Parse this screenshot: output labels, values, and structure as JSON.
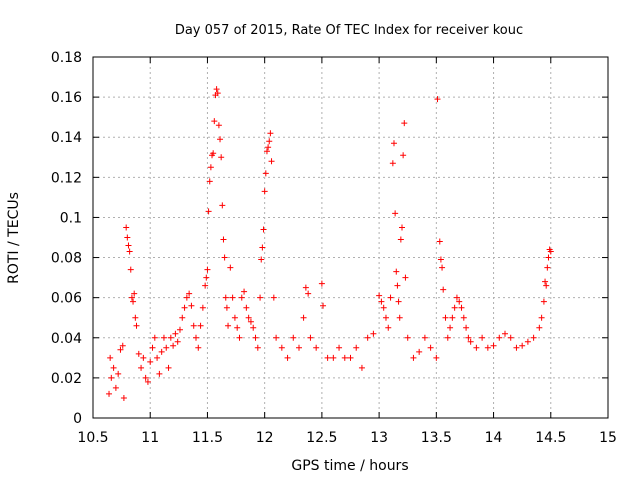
{
  "chart_data": {
    "type": "scatter",
    "title": "Day 057 of 2015, Rate Of TEC Index for receiver kouc",
    "xlabel": "GPS time / hours",
    "ylabel": "ROTI / TECUs",
    "xlim": [
      10.5,
      15
    ],
    "ylim": [
      0,
      0.18
    ],
    "xticks": [
      10.5,
      11,
      11.5,
      12,
      12.5,
      13,
      13.5,
      14,
      14.5,
      15
    ],
    "xtick_labels": [
      "10.5",
      "11",
      "11.5",
      "12",
      "12.5",
      "13",
      "13.5",
      "14",
      "14.5",
      "15"
    ],
    "yticks": [
      0,
      0.02,
      0.04,
      0.06,
      0.08,
      0.1,
      0.12,
      0.14,
      0.16,
      0.18
    ],
    "ytick_labels": [
      "0",
      "0.02",
      "0.04",
      "0.06",
      "0.08",
      "0.1",
      "0.12",
      "0.14",
      "0.16",
      "0.18"
    ],
    "grid": true,
    "marker": "+",
    "color": "#ff0000",
    "series": [
      {
        "name": "ROTI",
        "points": [
          [
            10.64,
            0.012
          ],
          [
            10.65,
            0.03
          ],
          [
            10.66,
            0.02
          ],
          [
            10.68,
            0.025
          ],
          [
            10.7,
            0.015
          ],
          [
            10.72,
            0.022
          ],
          [
            10.74,
            0.034
          ],
          [
            10.76,
            0.036
          ],
          [
            10.77,
            0.01
          ],
          [
            10.79,
            0.095
          ],
          [
            10.8,
            0.09
          ],
          [
            10.81,
            0.086
          ],
          [
            10.82,
            0.083
          ],
          [
            10.83,
            0.074
          ],
          [
            10.84,
            0.06
          ],
          [
            10.85,
            0.058
          ],
          [
            10.86,
            0.062
          ],
          [
            10.87,
            0.05
          ],
          [
            10.88,
            0.046
          ],
          [
            10.9,
            0.032
          ],
          [
            10.92,
            0.025
          ],
          [
            10.94,
            0.03
          ],
          [
            10.96,
            0.02
          ],
          [
            10.98,
            0.018
          ],
          [
            11.0,
            0.028
          ],
          [
            11.02,
            0.035
          ],
          [
            11.04,
            0.04
          ],
          [
            11.06,
            0.03
          ],
          [
            11.08,
            0.022
          ],
          [
            11.1,
            0.033
          ],
          [
            11.12,
            0.04
          ],
          [
            11.14,
            0.035
          ],
          [
            11.16,
            0.025
          ],
          [
            11.18,
            0.04
          ],
          [
            11.2,
            0.036
          ],
          [
            11.22,
            0.042
          ],
          [
            11.24,
            0.038
          ],
          [
            11.26,
            0.044
          ],
          [
            11.28,
            0.05
          ],
          [
            11.3,
            0.055
          ],
          [
            11.32,
            0.06
          ],
          [
            11.34,
            0.062
          ],
          [
            11.36,
            0.056
          ],
          [
            11.38,
            0.046
          ],
          [
            11.4,
            0.04
          ],
          [
            11.42,
            0.035
          ],
          [
            11.44,
            0.046
          ],
          [
            11.46,
            0.055
          ],
          [
            11.48,
            0.066
          ],
          [
            11.49,
            0.07
          ],
          [
            11.5,
            0.074
          ],
          [
            11.51,
            0.103
          ],
          [
            11.52,
            0.118
          ],
          [
            11.53,
            0.125
          ],
          [
            11.54,
            0.131
          ],
          [
            11.55,
            0.132
          ],
          [
            11.56,
            0.148
          ],
          [
            11.57,
            0.161
          ],
          [
            11.58,
            0.164
          ],
          [
            11.59,
            0.162
          ],
          [
            11.6,
            0.146
          ],
          [
            11.61,
            0.139
          ],
          [
            11.62,
            0.13
          ],
          [
            11.63,
            0.106
          ],
          [
            11.64,
            0.089
          ],
          [
            11.65,
            0.08
          ],
          [
            11.66,
            0.06
          ],
          [
            11.67,
            0.055
          ],
          [
            11.68,
            0.046
          ],
          [
            11.7,
            0.075
          ],
          [
            11.72,
            0.06
          ],
          [
            11.74,
            0.05
          ],
          [
            11.76,
            0.045
          ],
          [
            11.78,
            0.04
          ],
          [
            11.8,
            0.06
          ],
          [
            11.82,
            0.063
          ],
          [
            11.84,
            0.055
          ],
          [
            11.86,
            0.05
          ],
          [
            11.88,
            0.048
          ],
          [
            11.9,
            0.045
          ],
          [
            11.92,
            0.04
          ],
          [
            11.94,
            0.035
          ],
          [
            11.96,
            0.06
          ],
          [
            11.97,
            0.079
          ],
          [
            11.98,
            0.085
          ],
          [
            11.99,
            0.094
          ],
          [
            12.0,
            0.113
          ],
          [
            12.01,
            0.122
          ],
          [
            12.02,
            0.133
          ],
          [
            12.03,
            0.135
          ],
          [
            12.04,
            0.138
          ],
          [
            12.05,
            0.142
          ],
          [
            12.06,
            0.128
          ],
          [
            12.08,
            0.06
          ],
          [
            12.1,
            0.04
          ],
          [
            12.15,
            0.035
          ],
          [
            12.2,
            0.03
          ],
          [
            12.25,
            0.04
          ],
          [
            12.3,
            0.035
          ],
          [
            12.34,
            0.05
          ],
          [
            12.36,
            0.065
          ],
          [
            12.38,
            0.062
          ],
          [
            12.4,
            0.04
          ],
          [
            12.45,
            0.035
          ],
          [
            12.5,
            0.067
          ],
          [
            12.51,
            0.056
          ],
          [
            12.55,
            0.03
          ],
          [
            12.6,
            0.03
          ],
          [
            12.65,
            0.035
          ],
          [
            12.7,
            0.03
          ],
          [
            12.75,
            0.03
          ],
          [
            12.8,
            0.035
          ],
          [
            12.85,
            0.025
          ],
          [
            12.9,
            0.04
          ],
          [
            12.95,
            0.042
          ],
          [
            13.0,
            0.061
          ],
          [
            13.02,
            0.058
          ],
          [
            13.04,
            0.055
          ],
          [
            13.06,
            0.05
          ],
          [
            13.08,
            0.045
          ],
          [
            13.1,
            0.06
          ],
          [
            13.12,
            0.127
          ],
          [
            13.13,
            0.137
          ],
          [
            13.14,
            0.102
          ],
          [
            13.15,
            0.073
          ],
          [
            13.16,
            0.066
          ],
          [
            13.17,
            0.058
          ],
          [
            13.18,
            0.05
          ],
          [
            13.19,
            0.089
          ],
          [
            13.2,
            0.095
          ],
          [
            13.21,
            0.131
          ],
          [
            13.22,
            0.147
          ],
          [
            13.23,
            0.07
          ],
          [
            13.25,
            0.04
          ],
          [
            13.3,
            0.03
          ],
          [
            13.35,
            0.033
          ],
          [
            13.4,
            0.04
          ],
          [
            13.45,
            0.035
          ],
          [
            13.5,
            0.03
          ],
          [
            13.51,
            0.159
          ],
          [
            13.53,
            0.088
          ],
          [
            13.54,
            0.079
          ],
          [
            13.55,
            0.075
          ],
          [
            13.56,
            0.064
          ],
          [
            13.58,
            0.05
          ],
          [
            13.6,
            0.04
          ],
          [
            13.62,
            0.045
          ],
          [
            13.64,
            0.05
          ],
          [
            13.66,
            0.055
          ],
          [
            13.68,
            0.06
          ],
          [
            13.7,
            0.058
          ],
          [
            13.72,
            0.055
          ],
          [
            13.74,
            0.05
          ],
          [
            13.76,
            0.045
          ],
          [
            13.78,
            0.04
          ],
          [
            13.8,
            0.038
          ],
          [
            13.85,
            0.035
          ],
          [
            13.9,
            0.04
          ],
          [
            13.95,
            0.035
          ],
          [
            14.0,
            0.036
          ],
          [
            14.05,
            0.04
          ],
          [
            14.1,
            0.042
          ],
          [
            14.15,
            0.04
          ],
          [
            14.2,
            0.035
          ],
          [
            14.25,
            0.036
          ],
          [
            14.3,
            0.038
          ],
          [
            14.35,
            0.04
          ],
          [
            14.4,
            0.045
          ],
          [
            14.42,
            0.05
          ],
          [
            14.44,
            0.058
          ],
          [
            14.45,
            0.068
          ],
          [
            14.46,
            0.066
          ],
          [
            14.47,
            0.075
          ],
          [
            14.48,
            0.08
          ],
          [
            14.49,
            0.084
          ],
          [
            14.5,
            0.083
          ]
        ]
      }
    ]
  }
}
